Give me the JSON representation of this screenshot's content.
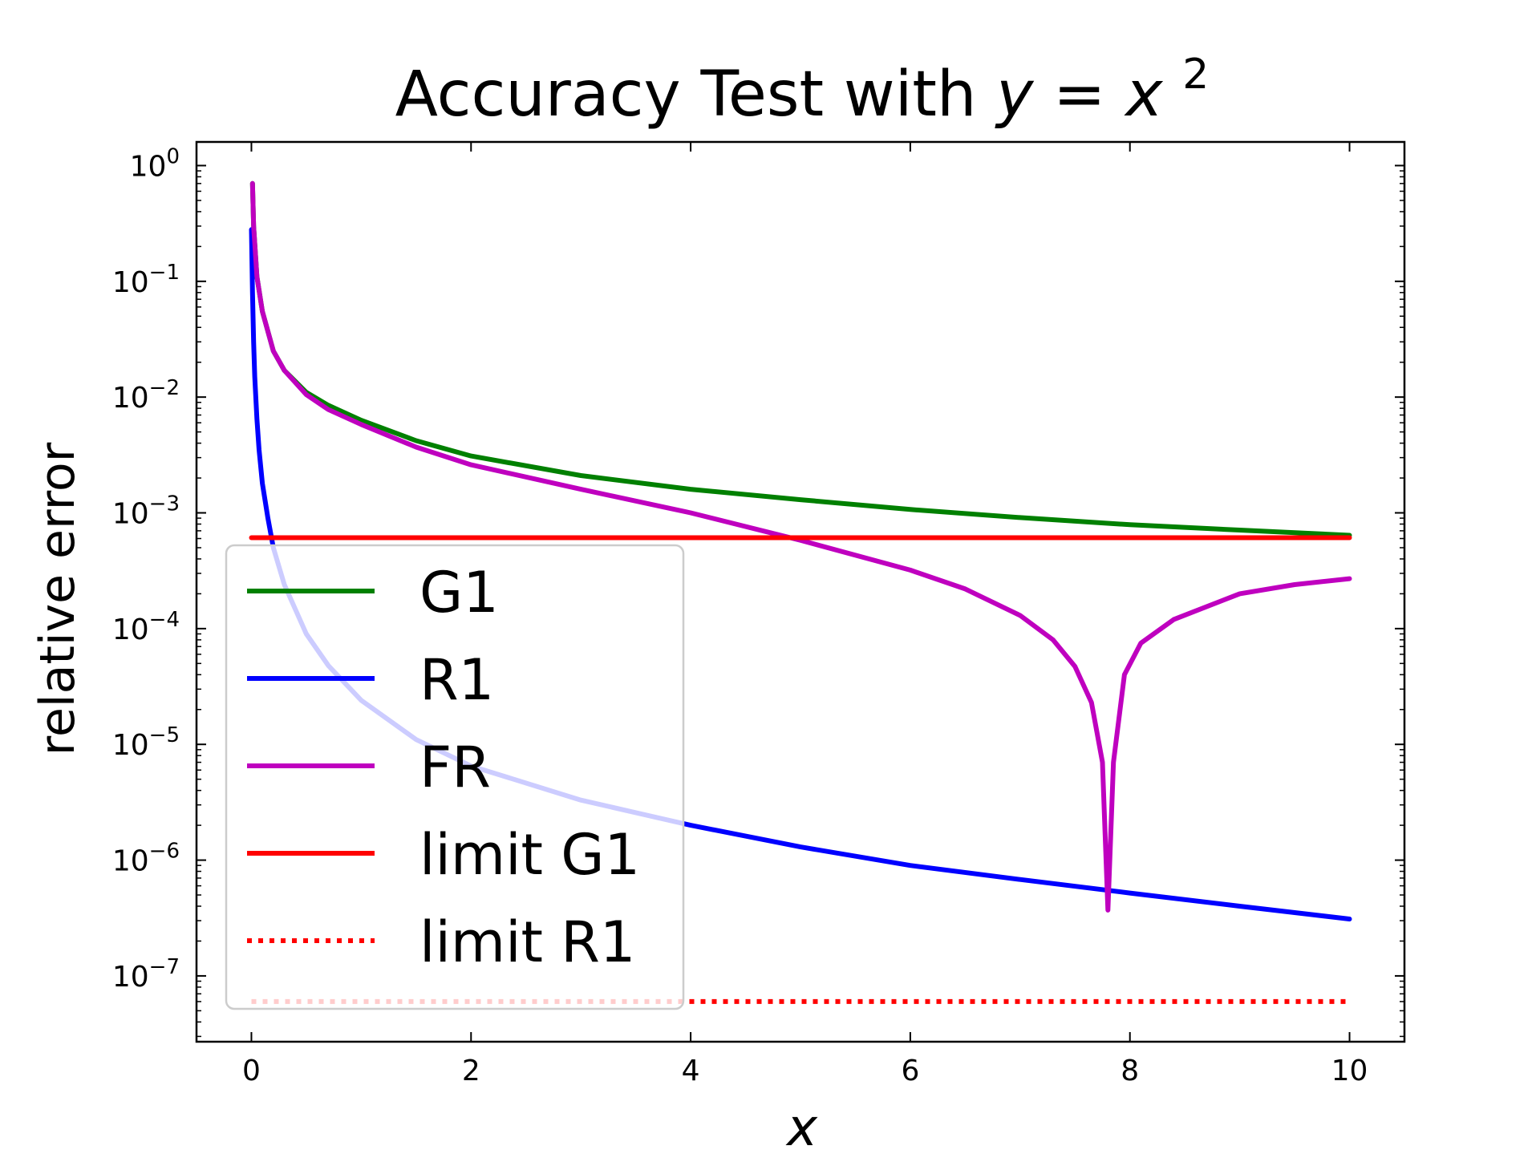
{
  "chart_data": {
    "type": "line",
    "title": {
      "prefix": "Accuracy Test with ",
      "math_y": "y",
      "math_eq": " = ",
      "math_x": "x",
      "math_exp": "2"
    },
    "xlabel": "x",
    "ylabel": "relative error",
    "x_ticks": [
      "0",
      "2",
      "4",
      "6",
      "8",
      "10"
    ],
    "x_tick_values": [
      0,
      2,
      4,
      6,
      8,
      10
    ],
    "y_tick_exponents": [
      "0",
      "−1",
      "−2",
      "−3",
      "−4",
      "−5",
      "−6",
      "−7"
    ],
    "y_tick_base": "10",
    "xlim": [
      -0.5,
      10.5
    ],
    "ylim": [
      2.7e-08,
      1.6
    ],
    "y_scale": "log",
    "grid": false,
    "legend_position": "lower-left",
    "series": [
      {
        "name": "G1",
        "color": "#008000",
        "style": "solid",
        "x": [
          0.01,
          0.02,
          0.05,
          0.1,
          0.2,
          0.3,
          0.5,
          0.7,
          1,
          1.5,
          2,
          3,
          4,
          5,
          6,
          7,
          8,
          9,
          10
        ],
        "y": [
          0.7,
          0.3,
          0.11,
          0.055,
          0.025,
          0.017,
          0.011,
          0.0085,
          0.0063,
          0.0042,
          0.0031,
          0.0021,
          0.0016,
          0.0013,
          0.00107,
          0.00091,
          0.00079,
          0.00071,
          0.00064
        ]
      },
      {
        "name": "R1",
        "color": "#0000ff",
        "style": "solid",
        "x": [
          0.0,
          0.01,
          0.02,
          0.03,
          0.05,
          0.07,
          0.1,
          0.15,
          0.2,
          0.3,
          0.5,
          0.7,
          1,
          1.5,
          2,
          3,
          4,
          5,
          6,
          7,
          8,
          9,
          10
        ],
        "y": [
          0.28,
          0.08,
          0.03,
          0.015,
          0.0065,
          0.0035,
          0.0018,
          0.0009,
          0.0005,
          0.00024,
          9e-05,
          4.8e-05,
          2.4e-05,
          1.1e-05,
          6.5e-06,
          3.3e-06,
          2e-06,
          1.3e-06,
          9e-07,
          6.8e-07,
          5.2e-07,
          4e-07,
          3.1e-07
        ]
      },
      {
        "name": "FR",
        "color": "#bf00bf",
        "style": "solid",
        "x": [
          0.01,
          0.02,
          0.05,
          0.1,
          0.2,
          0.3,
          0.5,
          0.7,
          1,
          1.5,
          2,
          3,
          4,
          5,
          6,
          6.5,
          7,
          7.3,
          7.5,
          7.65,
          7.75,
          7.8,
          7.85,
          7.95,
          8.1,
          8.4,
          9,
          9.5,
          10
        ],
        "y": [
          0.7,
          0.3,
          0.11,
          0.055,
          0.025,
          0.017,
          0.0105,
          0.0078,
          0.0058,
          0.0037,
          0.0026,
          0.0016,
          0.001,
          0.00058,
          0.00032,
          0.00022,
          0.00013,
          8e-05,
          4.7e-05,
          2.3e-05,
          7e-06,
          3.7e-07,
          7e-06,
          4e-05,
          7.5e-05,
          0.00012,
          0.0002,
          0.00024,
          0.00027
        ]
      },
      {
        "name": "limit G1",
        "color": "#ff0000",
        "style": "solid",
        "x": [
          0,
          10
        ],
        "y": [
          0.00061,
          0.00061
        ]
      },
      {
        "name": "limit R1",
        "color": "#ff0000",
        "style": "dotted",
        "x": [
          0,
          10
        ],
        "y": [
          6e-08,
          6e-08
        ]
      }
    ]
  }
}
